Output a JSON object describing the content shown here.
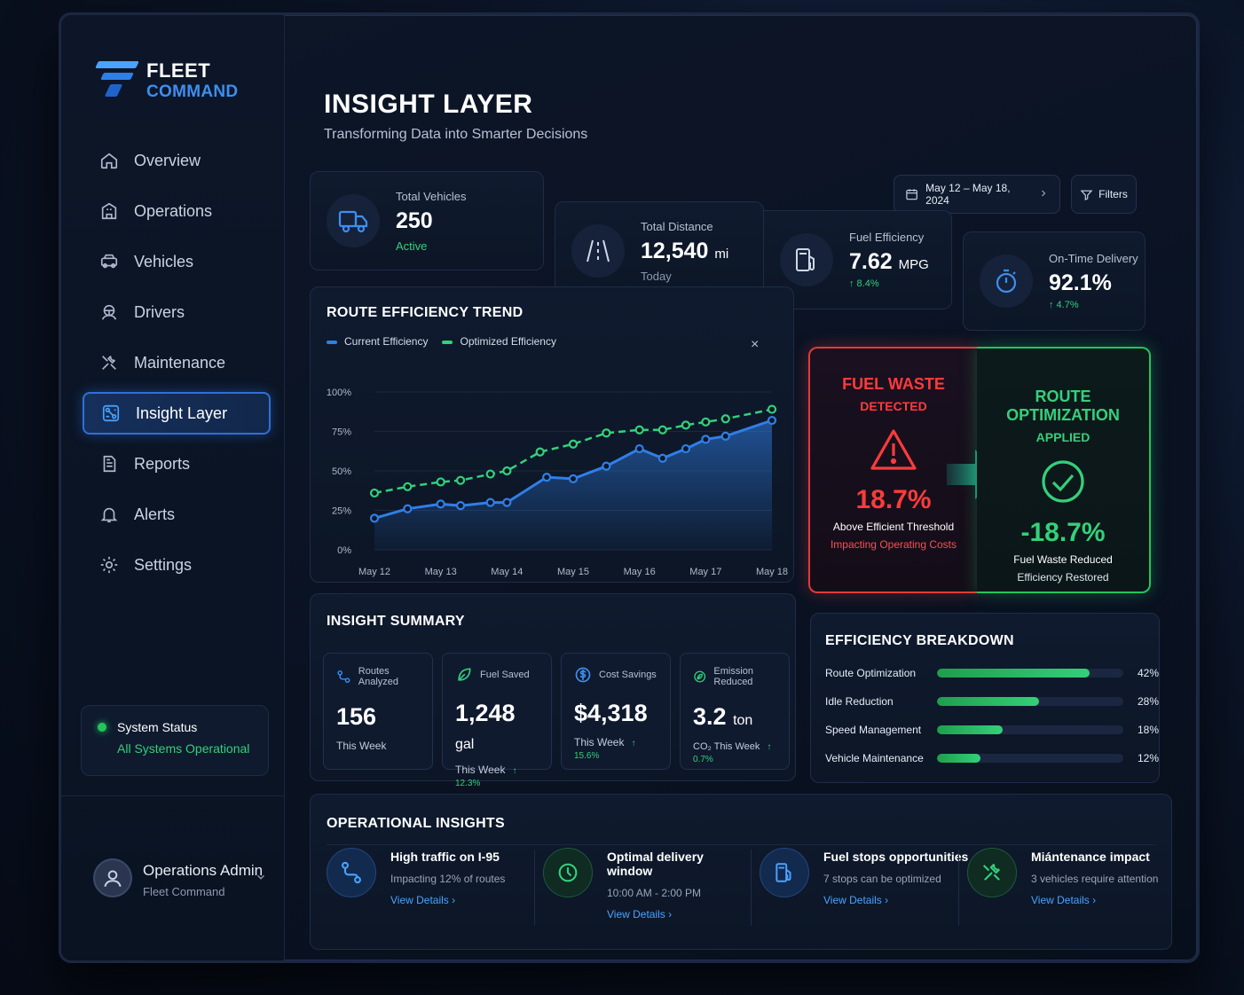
{
  "brand": {
    "line1": "FLEET",
    "line2": "COMMAND"
  },
  "nav": [
    {
      "label": "Overview",
      "icon": "home-icon",
      "active": false
    },
    {
      "label": "Operations",
      "icon": "building-icon",
      "active": false
    },
    {
      "label": "Vehicles",
      "icon": "car-icon",
      "active": false
    },
    {
      "label": "Drivers",
      "icon": "driver-icon",
      "active": false
    },
    {
      "label": "Maintenance",
      "icon": "tools-icon",
      "active": false
    },
    {
      "label": "Insight Layer",
      "icon": "insight-icon",
      "active": true
    },
    {
      "label": "Reports",
      "icon": "report-icon",
      "active": false
    },
    {
      "label": "Alerts",
      "icon": "bell-icon",
      "active": false
    },
    {
      "label": "Settings",
      "icon": "gear-icon",
      "active": false
    }
  ],
  "system_status": {
    "label": "System Status",
    "value": "All Systems Operational"
  },
  "user": {
    "name": "Operations Admin",
    "role": "Fleet Command"
  },
  "header": {
    "title": "INSIGHT LAYER",
    "subtitle": "Transforming Data into Smarter Decisions",
    "date_range": "May 12 – May 18, 2024",
    "filters_label": "Filters"
  },
  "kpis": {
    "vehicles": {
      "label": "Total Vehicles",
      "value": "250",
      "sub": "Active"
    },
    "distance": {
      "label": "Total Distance",
      "value": "12,540",
      "unit": "mi",
      "sub": "Today"
    },
    "fuel": {
      "label": "Fuel Efficiency",
      "value": "7.62",
      "unit": "MPG",
      "delta": "↑ 8.4%"
    },
    "ontime": {
      "label": "On-Time Delivery",
      "value": "92.1%",
      "delta": "↑ 4.7%"
    }
  },
  "route_trend": {
    "title": "ROUTE EFFICIENCY TREND",
    "close_glyph": "× "
  },
  "chart_data": {
    "type": "line",
    "x": [
      "May 12",
      "May 13",
      "May 14",
      "May 15",
      "May 16",
      "May 17",
      "May 18"
    ],
    "ylim": [
      0,
      100
    ],
    "yticks": [
      "100%",
      "75%",
      "50%",
      "25%",
      "0%"
    ],
    "series": [
      {
        "name": "Current Efficiency",
        "color": "#2f7fe8",
        "points": [
          [
            0,
            20
          ],
          [
            0.5,
            26
          ],
          [
            1,
            29
          ],
          [
            1.3,
            28
          ],
          [
            1.75,
            30
          ],
          [
            2,
            30
          ],
          [
            2.6,
            46
          ],
          [
            3,
            45
          ],
          [
            3.5,
            53
          ],
          [
            4,
            64
          ],
          [
            4.35,
            58
          ],
          [
            4.7,
            64
          ],
          [
            5,
            70
          ],
          [
            5.3,
            72
          ],
          [
            6,
            82
          ]
        ]
      },
      {
        "name": "Optimized Efficiency",
        "color": "#34d07a",
        "points": [
          [
            0,
            36
          ],
          [
            0.5,
            40
          ],
          [
            1,
            43
          ],
          [
            1.3,
            44
          ],
          [
            1.75,
            48
          ],
          [
            2,
            50
          ],
          [
            2.5,
            62
          ],
          [
            3,
            67
          ],
          [
            3.5,
            74
          ],
          [
            4,
            76
          ],
          [
            4.35,
            76
          ],
          [
            4.7,
            79
          ],
          [
            5,
            81
          ],
          [
            5.3,
            83
          ],
          [
            6,
            89
          ]
        ]
      }
    ]
  },
  "fuel_waste": {
    "title": "FUEL WASTE",
    "title2": "DETECTED",
    "value": "18.7%",
    "line1": "Above Efficient Threshold",
    "line2": "Impacting Operating Costs"
  },
  "route_opt": {
    "title": "ROUTE OPTIMIZATION",
    "title2": "APPLIED",
    "value": "-18.7%",
    "line1": "Fuel Waste Reduced",
    "line2": "Efficiency Restored"
  },
  "insight_summary": {
    "title": "INSIGHT SUMMARY",
    "items": [
      {
        "label": "Routes Analyzed",
        "value": "156",
        "unit": "",
        "foot": "This Week",
        "delta": ""
      },
      {
        "label": "Fuel Saved",
        "value": "1,248",
        "unit": "gal",
        "foot": "This Week",
        "delta": "↑ 12.3%"
      },
      {
        "label": "Cost Savings",
        "value": "$4,318",
        "unit": "",
        "foot": "This Week",
        "delta": "↑ 15.6%"
      },
      {
        "label": "Emission Reduced",
        "value": "3.2",
        "unit": "ton",
        "foot": "CO₂ This Week",
        "delta": "↑ 0.7%"
      }
    ]
  },
  "efficiency_breakdown": {
    "title": "EFFICIENCY BREAKDOWN",
    "items": [
      {
        "label": "Route Optimization",
        "pct": 42,
        "pct_label": "42%"
      },
      {
        "label": "Idle Reduction",
        "pct": 28,
        "pct_label": "28%"
      },
      {
        "label": "Speed Management",
        "pct": 18,
        "pct_label": "18%"
      },
      {
        "label": "Vehicle Maintenance",
        "pct": 12,
        "pct_label": "12%"
      }
    ]
  },
  "operational_insights": {
    "title": "OPERATIONAL INSIGHTS",
    "items": [
      {
        "title": "High traffic on I-95",
        "desc": "Impacting 12% of routes",
        "link": "View Details  ›",
        "icon": "route-icon",
        "tone": "blue"
      },
      {
        "title": "Optimal delivery window",
        "desc": "10:00 AM - 2:00 PM",
        "link": "View Details  ›",
        "icon": "clock-icon",
        "tone": "green"
      },
      {
        "title": "Fuel stops opportunities",
        "desc": "7 stops can be optimized",
        "link": "View Details  ›",
        "icon": "fuel-pump-icon",
        "tone": "blue"
      },
      {
        "title": "Miántenance impact",
        "desc": "3 vehicles require attention",
        "link": "View Details  ›",
        "icon": "wrench-icon",
        "tone": "green"
      }
    ]
  }
}
